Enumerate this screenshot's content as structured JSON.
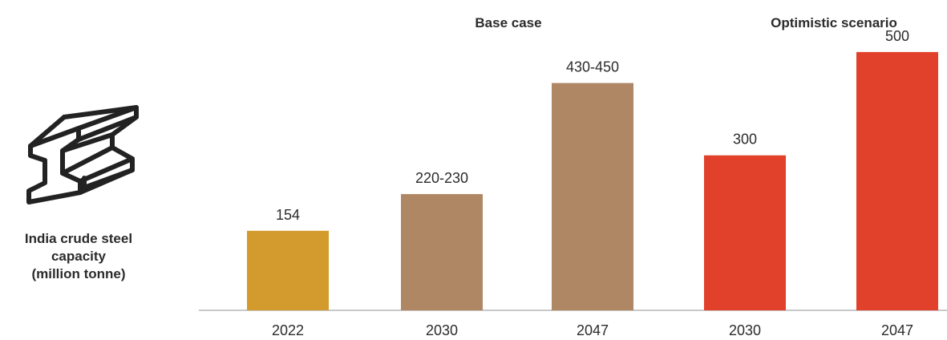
{
  "side_label": {
    "line1": "India crude steel",
    "line2": "capacity",
    "line3": "(million tonne)"
  },
  "icon": "steel-i-beam-icon",
  "group_labels": {
    "base": "Base case",
    "optimistic": "Optimistic scenario"
  },
  "colors": {
    "bar_2022": "#d39a2e",
    "bar_base": "#b08764",
    "bar_optimistic": "#e1402a",
    "text": "#2b2b2b",
    "axis": "#c8c8c8"
  },
  "chart_data": {
    "type": "bar",
    "title": "",
    "xlabel": "",
    "ylabel": "India crude steel capacity (million tonne)",
    "ylim": [
      0,
      520
    ],
    "grid": false,
    "categories": [
      "2022",
      "2030",
      "2047",
      "2030",
      "2047"
    ],
    "groups": [
      "",
      "Base case",
      "Base case",
      "Optimistic scenario",
      "Optimistic scenario"
    ],
    "values": [
      154,
      225,
      440,
      300,
      500
    ],
    "data_labels": [
      "154",
      "220-230",
      "430-450",
      "300",
      "500"
    ]
  }
}
